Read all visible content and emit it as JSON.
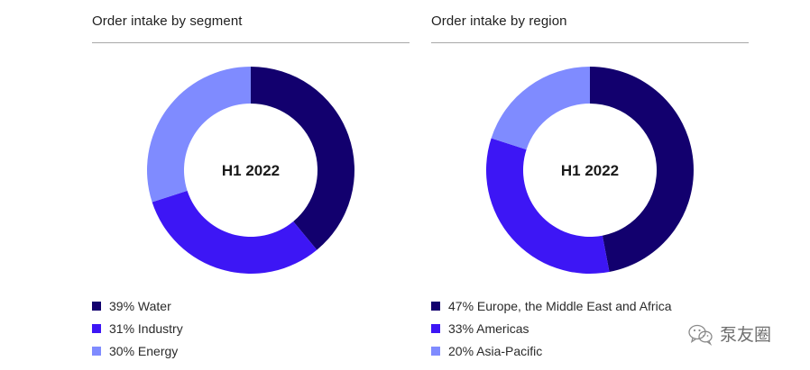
{
  "chart_data": [
    {
      "type": "pie",
      "title": "Order intake by segment",
      "center_label": "H1 2022",
      "categories": [
        "Water",
        "Industry",
        "Energy"
      ],
      "values": [
        39,
        31,
        30
      ],
      "unit": "%",
      "colors": [
        "#12006e",
        "#3d16f5",
        "#7f8bff"
      ],
      "legend": [
        "39% Water",
        "31% Industry",
        "30% Energy"
      ],
      "legend_position": "bottom-left"
    },
    {
      "type": "pie",
      "title": "Order intake by region",
      "center_label": "H1 2022",
      "categories": [
        "Europe, the Middle East and Africa",
        "Americas",
        "Asia-Pacific"
      ],
      "values": [
        47,
        33,
        20
      ],
      "unit": "%",
      "colors": [
        "#12006e",
        "#3d16f5",
        "#7f8bff"
      ],
      "legend": [
        "47% Europe, the Middle East and Africa",
        "33% Americas",
        "20% Asia-Pacific"
      ],
      "legend_position": "bottom-left"
    }
  ],
  "watermark": {
    "text": "泵友圈",
    "icon": "wechat-logo-icon"
  }
}
